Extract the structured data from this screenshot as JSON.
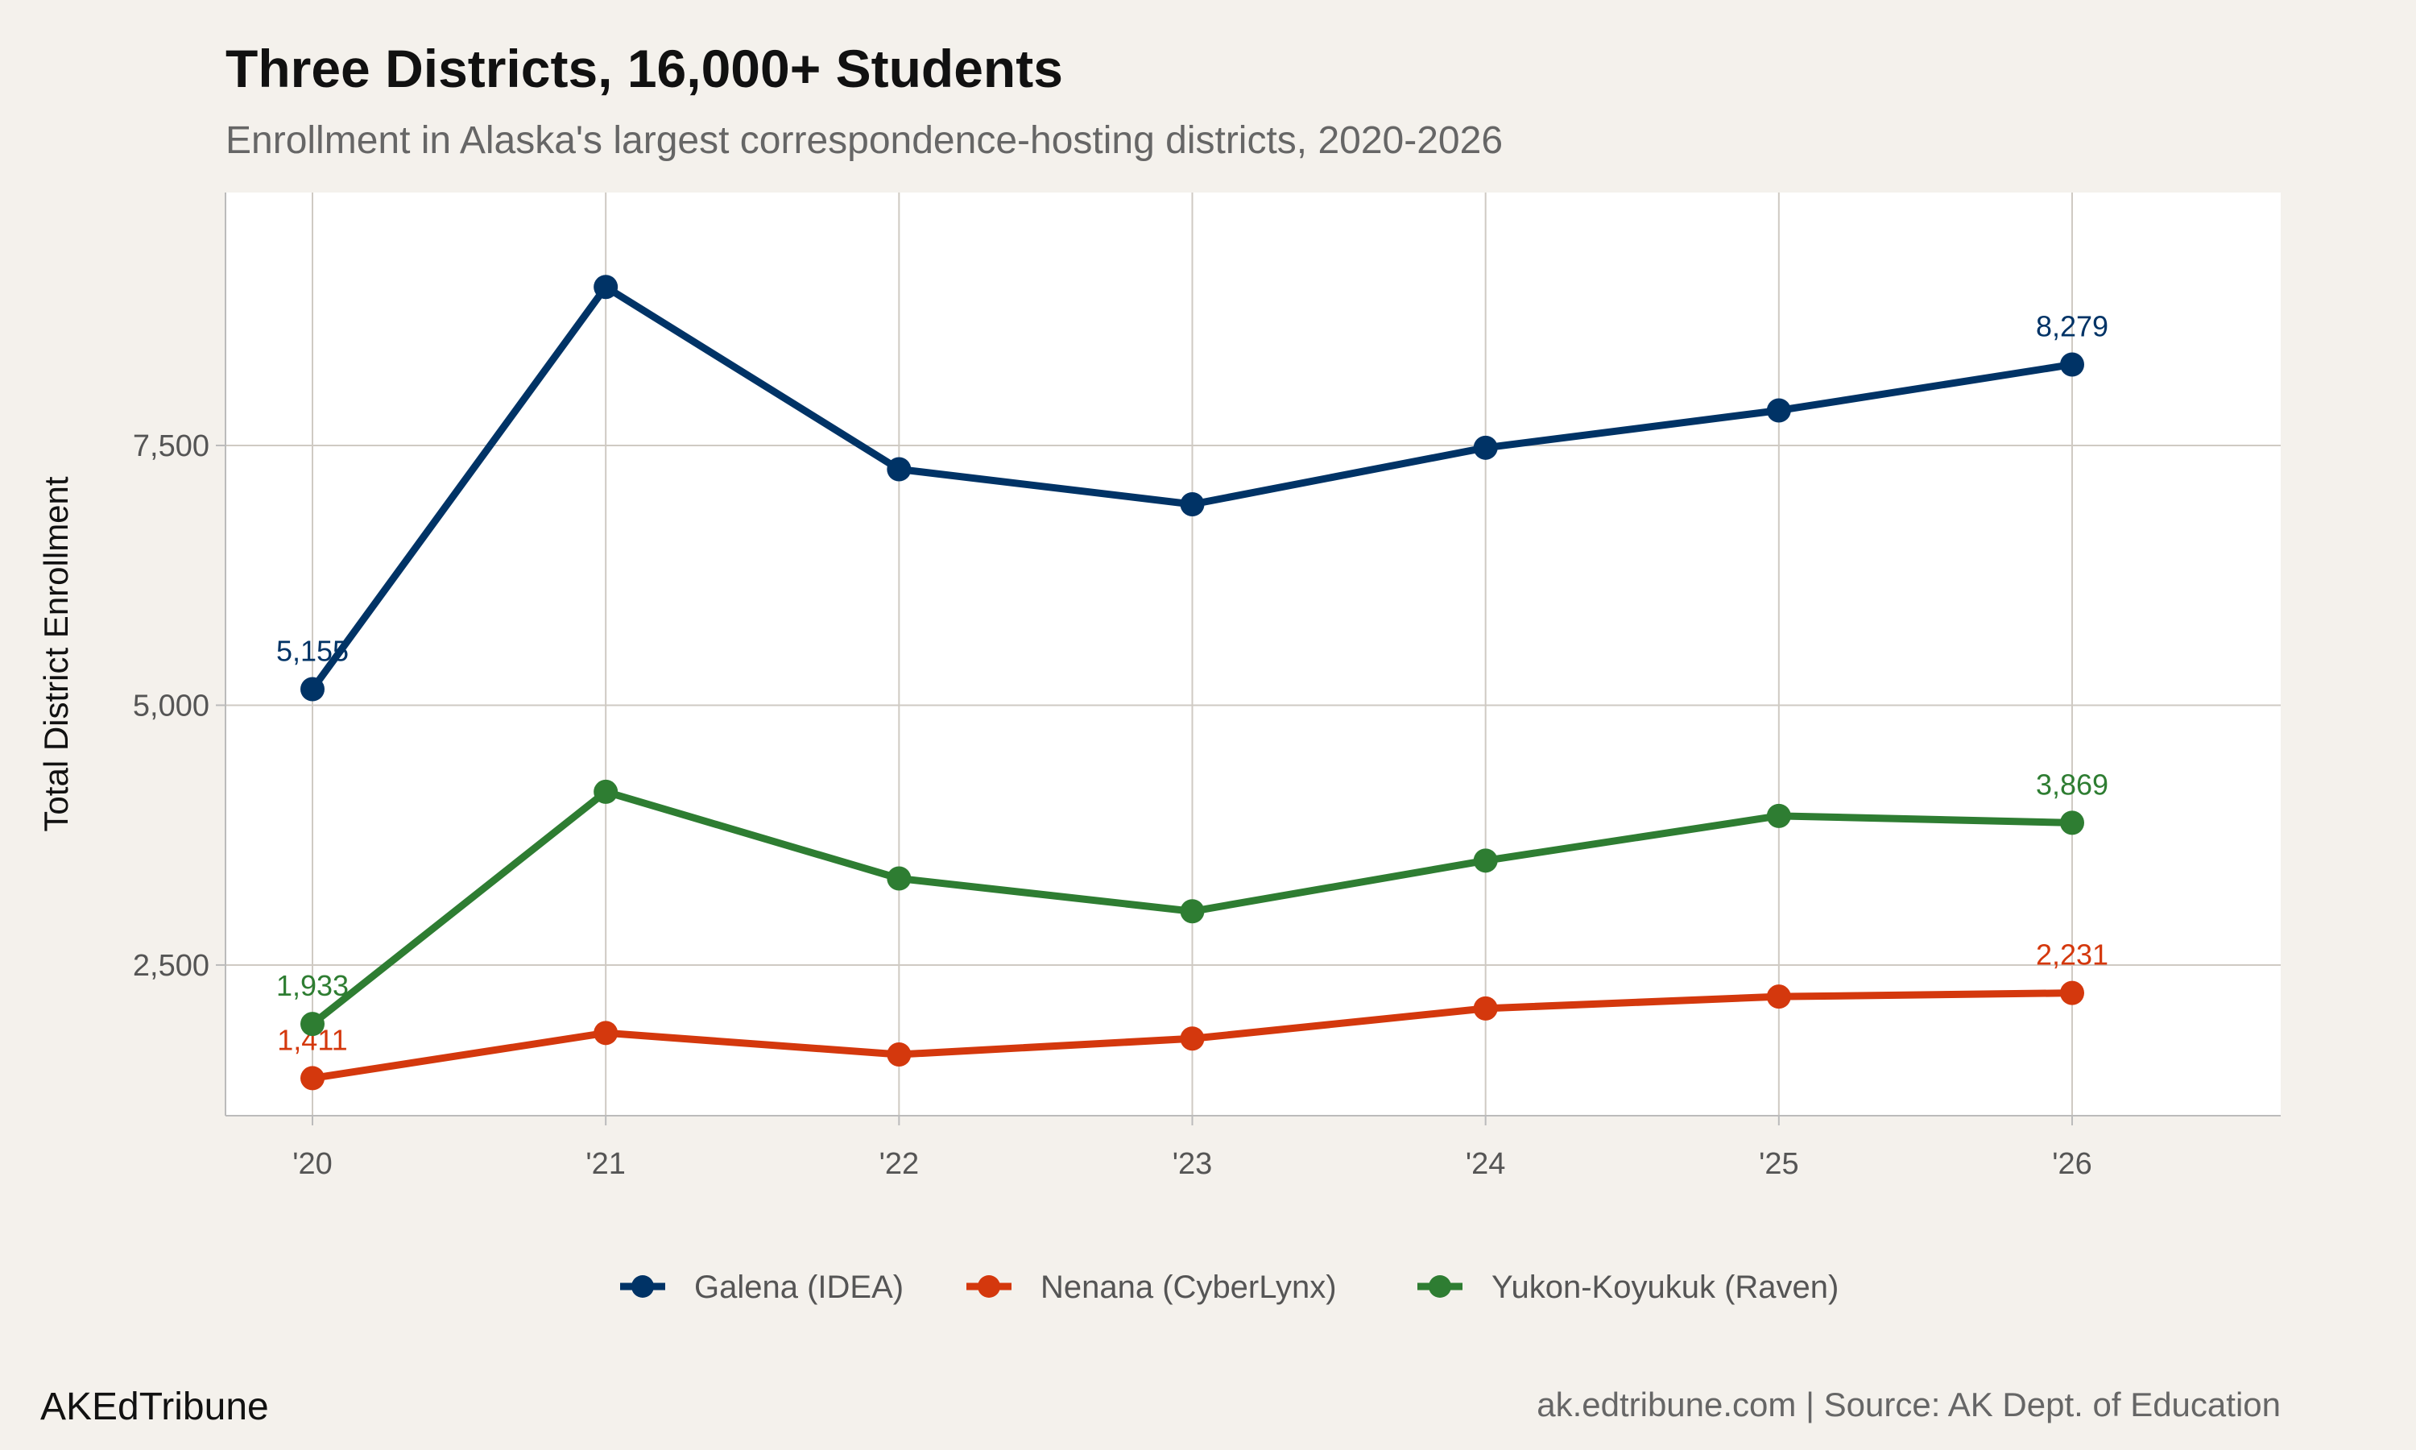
{
  "chart_data": {
    "type": "line",
    "title": "Three Districts, 16,000+ Students",
    "subtitle": "Enrollment in Alaska's largest correspondence-hosting districts, 2020-2026",
    "xlabel": "",
    "ylabel": "Total District Enrollment",
    "categories": [
      "'20",
      "'21",
      "'22",
      "'23",
      "'24",
      "'25",
      "'26"
    ],
    "ylim": [
      1050,
      9934
    ],
    "yticks": [
      2500,
      5000,
      7500
    ],
    "ytick_labels": [
      "2,500",
      "5,000",
      "7,500"
    ],
    "grid": true,
    "legend_position": "bottom",
    "series": [
      {
        "name": "Galena (IDEA)",
        "color": "#003366",
        "values": [
          5155,
          9025,
          7271,
          6934,
          7478,
          7837,
          8279
        ],
        "labels": [
          {
            "index": 0,
            "text": "5,155"
          },
          {
            "index": 6,
            "text": "8,279"
          }
        ]
      },
      {
        "name": "Nenana (CyberLynx)",
        "color": "#d4380d",
        "values": [
          1411,
          1846,
          1639,
          1792,
          2082,
          2196,
          2231
        ],
        "labels": [
          {
            "index": 0,
            "text": "1,411"
          },
          {
            "index": 6,
            "text": "2,231"
          }
        ]
      },
      {
        "name": "Yukon-Koyukuk (Raven)",
        "color": "#2e7d32",
        "values": [
          1933,
          4167,
          3333,
          3017,
          3505,
          3935,
          3869
        ],
        "labels": [
          {
            "index": 0,
            "text": "1,933"
          },
          {
            "index": 6,
            "text": "3,869"
          }
        ]
      }
    ]
  },
  "footer": {
    "brand": "AKEdTribune",
    "source": "ak.edtribune.com | Source: AK Dept. of Education"
  }
}
